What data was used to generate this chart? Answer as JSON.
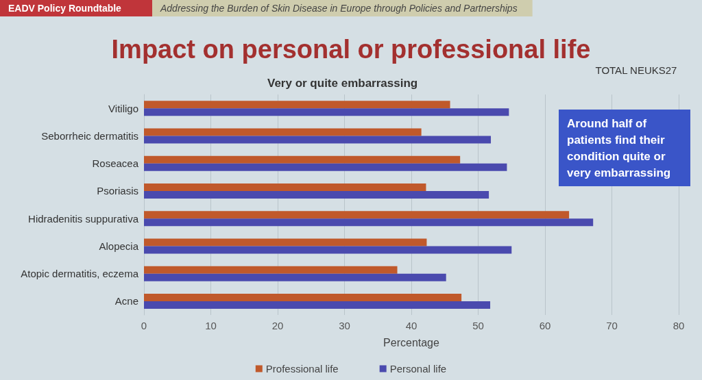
{
  "chart_data": {
    "type": "bar",
    "orientation": "horizontal",
    "title": "Impact on personal or professional life",
    "subtitle": "Very or quite embarrassing",
    "xlabel": "Percentage",
    "annotations": [
      "EADV Policy Roundtable",
      "Addressing the Burden of Skin Disease in Europe through Policies and Partnerships",
      "TOTAL NEUKS27",
      "Around half of patients find their condition quite or very embarrassing"
    ],
    "categories": [
      "Vitiligo",
      "Seborrheic dermatitis",
      "Roseacea",
      "Psoriasis",
      "Hidradenitis suppurativa",
      "Alopecia",
      "Atopic dermatitis, eczema",
      "Acne"
    ],
    "series": [
      {
        "name": "Professional life",
        "color": "#c0592b",
        "values": [
          45.8,
          41.5,
          47.3,
          42.2,
          63.6,
          42.3,
          37.9,
          47.5
        ]
      },
      {
        "name": "Personal life",
        "color": "#4a4aae",
        "values": [
          54.6,
          51.9,
          54.3,
          51.6,
          67.2,
          55.0,
          45.2,
          51.8
        ]
      }
    ],
    "xlim": [
      0,
      80
    ],
    "xticks": [
      0,
      10,
      20,
      30,
      40,
      50,
      60,
      70,
      80
    ],
    "grid": "x",
    "legend": "bottom"
  }
}
